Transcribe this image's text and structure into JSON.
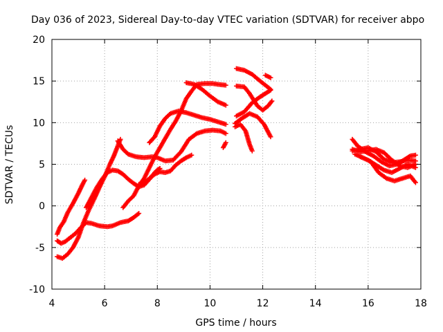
{
  "chart_data": {
    "type": "scatter",
    "title": "Day 036 of 2023, Sidereal Day-to-day VTEC variation (SDTVAR) for receiver abpo",
    "xlabel": "GPS time / hours",
    "ylabel": "SDTVAR / TECUs",
    "xlim": [
      4,
      18
    ],
    "ylim": [
      -10,
      20
    ],
    "xticks": [
      4,
      6,
      8,
      10,
      12,
      14,
      16,
      18
    ],
    "yticks": [
      -10,
      -5,
      0,
      5,
      10,
      15,
      20
    ],
    "grid": true,
    "marker": "+",
    "color": "#ff0000",
    "series": [
      {
        "x": [
          4.2,
          4.3,
          4.45,
          4.6,
          4.8,
          5.0,
          5.15,
          5.25
        ],
        "y": [
          -3.4,
          -2.6,
          -1.9,
          -0.8,
          0.3,
          1.5,
          2.5,
          3.1
        ]
      },
      {
        "x": [
          4.2,
          4.35,
          4.5,
          4.7,
          4.9,
          5.1,
          5.3,
          5.5,
          5.8,
          6.1,
          6.3,
          6.6,
          6.9,
          7.1,
          7.3
        ],
        "y": [
          -4.2,
          -4.5,
          -4.3,
          -3.8,
          -3.3,
          -2.6,
          -2.0,
          -2.1,
          -2.4,
          -2.5,
          -2.4,
          -2.0,
          -1.8,
          -1.4,
          -0.9
        ]
      },
      {
        "x": [
          4.2,
          4.4,
          4.6,
          4.8,
          5.0,
          5.2,
          5.4,
          5.6,
          5.8,
          6.0,
          6.2,
          6.35,
          6.5,
          6.6
        ],
        "y": [
          -6.1,
          -6.3,
          -5.8,
          -5.0,
          -3.8,
          -2.0,
          -0.5,
          0.8,
          2.2,
          3.5,
          5.0,
          6.0,
          7.2,
          8.0
        ]
      },
      {
        "x": [
          5.3,
          5.5,
          5.7,
          5.9,
          6.1,
          6.3,
          6.5,
          6.7,
          6.9,
          7.1,
          7.3,
          7.5,
          7.7,
          7.9,
          8.0,
          8.1
        ],
        "y": [
          -0.2,
          1.0,
          2.2,
          3.2,
          4.0,
          4.3,
          4.2,
          3.8,
          3.2,
          2.7,
          2.3,
          2.5,
          3.2,
          4.0,
          4.3,
          4.5
        ]
      },
      {
        "x": [
          6.5,
          6.7,
          6.9,
          7.2,
          7.5,
          7.8,
          8.0,
          8.3,
          8.6,
          8.9,
          9.2,
          9.5,
          9.8,
          10.1,
          10.4,
          10.6
        ],
        "y": [
          7.8,
          6.8,
          6.2,
          5.9,
          5.8,
          5.9,
          5.8,
          5.4,
          5.5,
          6.5,
          8.0,
          8.7,
          9.0,
          9.1,
          9.0,
          8.7
        ]
      },
      {
        "x": [
          7.7,
          7.9,
          8.1,
          8.3,
          8.5,
          8.8,
          9.1,
          9.4,
          9.7,
          10.0,
          10.3,
          10.6
        ],
        "y": [
          7.6,
          8.3,
          9.6,
          10.5,
          11.1,
          11.4,
          11.2,
          10.9,
          10.6,
          10.4,
          10.1,
          9.8
        ]
      },
      {
        "x": [
          7.3,
          7.5,
          7.7,
          7.9,
          8.1,
          8.3,
          8.5,
          8.7,
          8.9,
          9.1,
          9.3
        ],
        "y": [
          2.6,
          2.7,
          3.3,
          3.8,
          4.1,
          4.0,
          4.2,
          4.9,
          5.4,
          5.8,
          6.1
        ]
      },
      {
        "x": [
          6.7,
          6.9,
          7.1,
          7.3,
          7.5,
          7.7,
          7.9,
          8.1,
          8.3,
          8.5,
          8.7,
          8.9,
          9.1,
          9.3,
          9.5,
          9.8,
          10.1,
          10.3,
          10.6
        ],
        "y": [
          -0.2,
          0.6,
          1.2,
          2.4,
          3.3,
          4.6,
          5.9,
          7.0,
          8.1,
          9.2,
          10.2,
          11.4,
          12.9,
          13.8,
          14.6,
          14.7,
          14.7,
          14.6,
          14.5
        ]
      },
      {
        "x": [
          9.1,
          9.4,
          9.7,
          10.0,
          10.3,
          10.6
        ],
        "y": [
          14.8,
          14.6,
          14.0,
          13.2,
          12.5,
          12.1
        ]
      },
      {
        "x": [
          10.5,
          10.6
        ],
        "y": [
          7.0,
          7.6
        ]
      },
      {
        "x": [
          11.0,
          11.3,
          11.6,
          11.9,
          12.1,
          12.3
        ],
        "y": [
          16.5,
          16.3,
          15.8,
          15.0,
          14.5,
          14.0
        ]
      },
      {
        "x": [
          11.0,
          11.3,
          11.5,
          11.8,
          12.0,
          12.2,
          12.35
        ],
        "y": [
          14.4,
          14.3,
          13.5,
          12.0,
          11.5,
          12.0,
          12.6
        ]
      },
      {
        "x": [
          11.0,
          11.3,
          11.6,
          11.9,
          12.1,
          12.3
        ],
        "y": [
          10.8,
          11.3,
          12.4,
          13.1,
          13.5,
          13.9
        ]
      },
      {
        "x": [
          10.95,
          11.2,
          11.5,
          11.8,
          12.05,
          12.3
        ],
        "y": [
          9.9,
          10.5,
          11.1,
          10.7,
          9.8,
          8.3
        ]
      },
      {
        "x": [
          10.95,
          11.15,
          11.35,
          11.5,
          11.6
        ],
        "y": [
          9.5,
          9.8,
          9.0,
          7.4,
          6.6
        ]
      },
      {
        "x": [
          12.1,
          12.3
        ],
        "y": [
          15.7,
          15.4
        ]
      },
      {
        "x": [
          15.4,
          15.6,
          15.9,
          16.2,
          16.5,
          16.8,
          17.1,
          17.4,
          17.6,
          17.8
        ],
        "y": [
          8.0,
          7.2,
          6.5,
          6.0,
          5.3,
          4.8,
          5.0,
          5.6,
          6.0,
          6.1
        ]
      },
      {
        "x": [
          15.4,
          15.7,
          16.0,
          16.3,
          16.6,
          16.9,
          17.2,
          17.5,
          17.8
        ],
        "y": [
          6.8,
          6.5,
          6.6,
          6.8,
          6.4,
          5.5,
          4.8,
          4.6,
          5.0
        ]
      },
      {
        "x": [
          15.4,
          15.7,
          16.0,
          16.3,
          16.6,
          16.9,
          17.2,
          17.5,
          17.8
        ],
        "y": [
          6.6,
          6.8,
          7.0,
          6.5,
          5.6,
          5.2,
          5.3,
          5.5,
          5.4
        ]
      },
      {
        "x": [
          15.5,
          15.8,
          16.1,
          16.4,
          16.7,
          17.0,
          17.3,
          17.6,
          17.8
        ],
        "y": [
          6.2,
          5.8,
          5.3,
          4.0,
          3.3,
          3.0,
          3.3,
          3.6,
          2.8
        ]
      },
      {
        "x": [
          15.7,
          16.0,
          16.3,
          16.6,
          16.9,
          17.2,
          17.5,
          17.8
        ],
        "y": [
          5.9,
          5.5,
          4.9,
          4.3,
          4.0,
          4.5,
          5.0,
          4.6
        ]
      }
    ]
  }
}
